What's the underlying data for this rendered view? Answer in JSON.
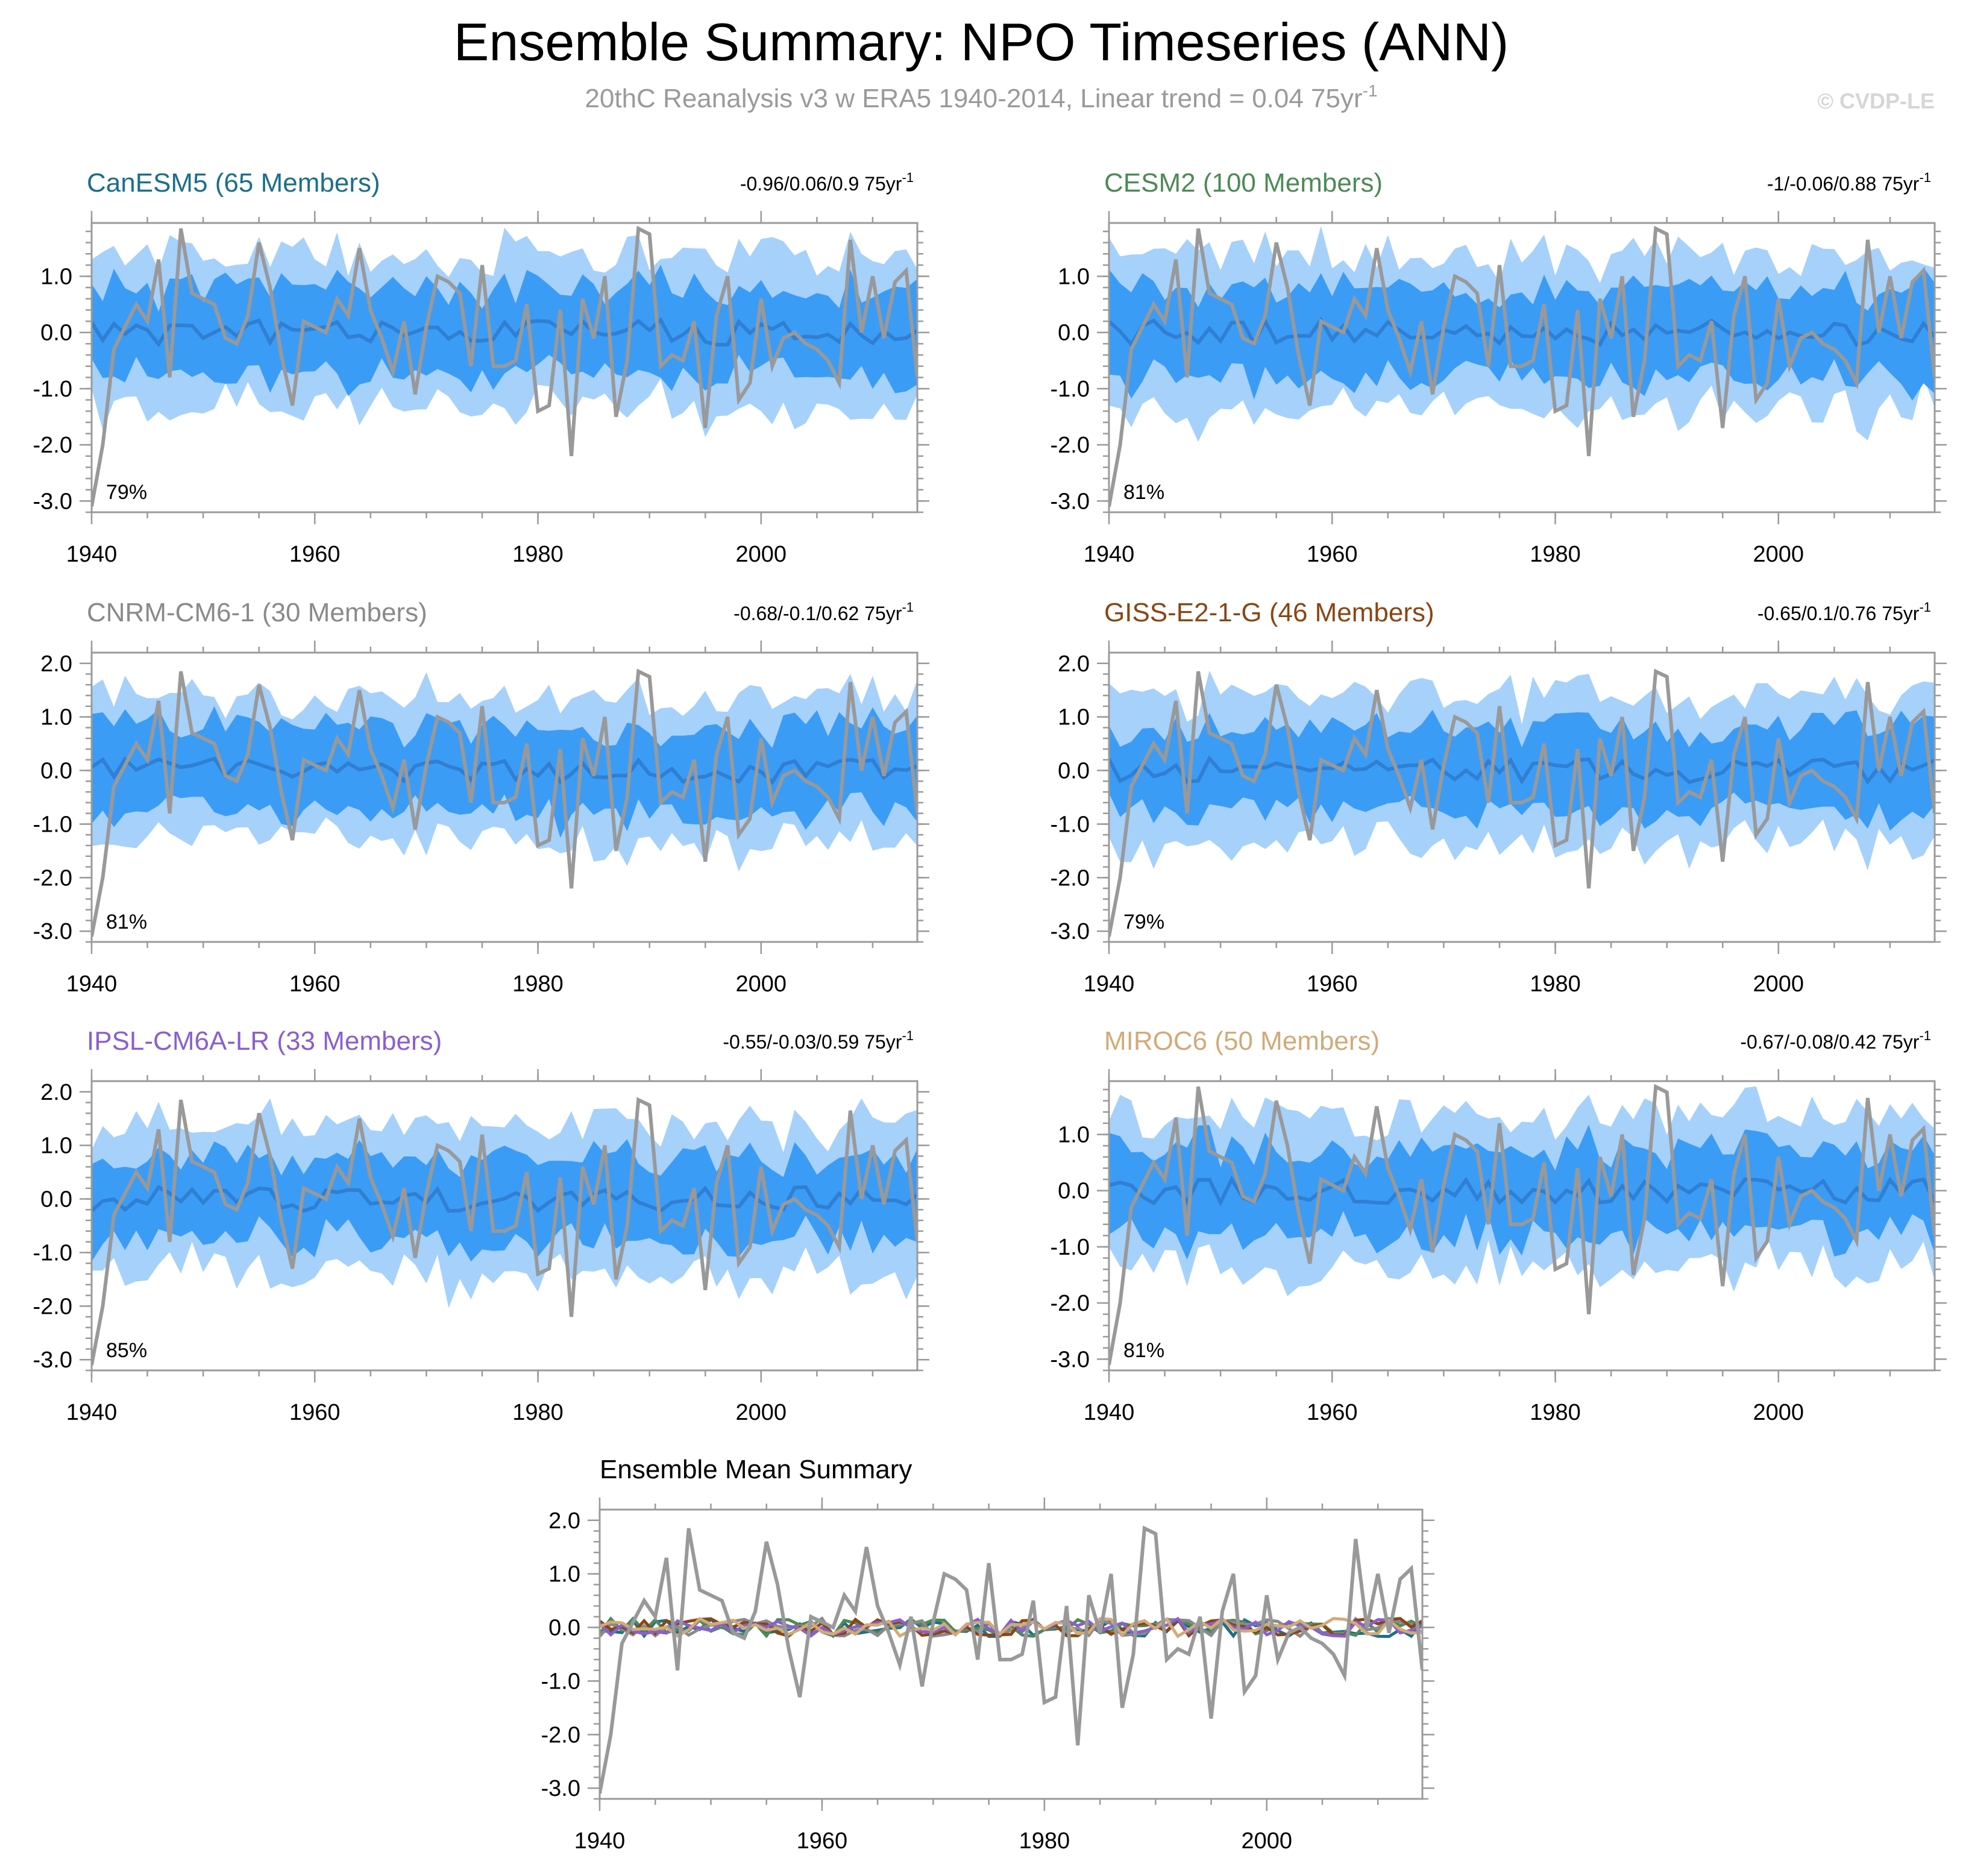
{
  "header": {
    "title": "Ensemble Summary: NPO Timeseries (ANN)",
    "subtitle": "20thC Reanalysis v3 w ERA5 1940-2014, Linear trend = 0.04 75yr",
    "subtitle_sup": "-1",
    "watermark": "© CVDP-LE"
  },
  "colors": {
    "outer_band": "#a6d1fb",
    "inner_band": "#3b9cf5",
    "ensemble_mean": "#2f7fd3",
    "observations": "#999999"
  },
  "chart_data": [
    {
      "type": "area",
      "title": "CanESM5 (65 Members)",
      "title_color": "#1b6f8a",
      "trend_label": "-0.96/0.06/0.9 75yr",
      "trend_sup": "-1",
      "percent": "79%",
      "x_ticks": [
        "1940",
        "1960",
        "1980",
        "2000"
      ],
      "y_ticks": [
        "1.0",
        "0.0",
        "-1.0",
        "-2.0",
        "-3.0"
      ],
      "xlim": [
        1940,
        2014
      ],
      "ylim": [
        -3.2,
        1.95
      ],
      "seed": 11
    },
    {
      "type": "area",
      "title": "CESM2 (100 Members)",
      "title_color": "#4d8a57",
      "trend_label": "-1/-0.06/0.88 75yr",
      "trend_sup": "-1",
      "percent": "81%",
      "x_ticks": [
        "1940",
        "1960",
        "1980",
        "2000"
      ],
      "y_ticks": [
        "1.0",
        "0.0",
        "-1.0",
        "-2.0",
        "-3.0"
      ],
      "xlim": [
        1940,
        2014
      ],
      "ylim": [
        -3.2,
        1.95
      ],
      "seed": 23
    },
    {
      "type": "area",
      "title": "CNRM-CM6-1 (30 Members)",
      "title_color": "#8a8a8a",
      "trend_label": "-0.68/-0.1/0.62 75yr",
      "trend_sup": "-1",
      "percent": "81%",
      "x_ticks": [
        "1940",
        "1960",
        "1980",
        "2000"
      ],
      "y_ticks": [
        "2.0",
        "1.0",
        "0.0",
        "-1.0",
        "-2.0",
        "-3.0"
      ],
      "xlim": [
        1940,
        2014
      ],
      "ylim": [
        -3.2,
        2.2
      ],
      "seed": 37
    },
    {
      "type": "area",
      "title": "GISS-E2-1-G (46 Members)",
      "title_color": "#8b4513",
      "trend_label": "-0.65/0.1/0.76 75yr",
      "trend_sup": "-1",
      "percent": "79%",
      "x_ticks": [
        "1940",
        "1960",
        "1980",
        "2000"
      ],
      "y_ticks": [
        "2.0",
        "1.0",
        "0.0",
        "-1.0",
        "-2.0",
        "-3.0"
      ],
      "xlim": [
        1940,
        2014
      ],
      "ylim": [
        -3.2,
        2.2
      ],
      "seed": 41
    },
    {
      "type": "area",
      "title": "IPSL-CM6A-LR (33 Members)",
      "title_color": "#8a5fd0",
      "trend_label": "-0.55/-0.03/0.59 75yr",
      "trend_sup": "-1",
      "percent": "85%",
      "x_ticks": [
        "1940",
        "1960",
        "1980",
        "2000"
      ],
      "y_ticks": [
        "2.0",
        "1.0",
        "0.0",
        "-1.0",
        "-2.0",
        "-3.0"
      ],
      "xlim": [
        1940,
        2014
      ],
      "ylim": [
        -3.2,
        2.2
      ],
      "seed": 53
    },
    {
      "type": "area",
      "title": "MIROC6 (50 Members)",
      "title_color": "#d2aa78",
      "trend_label": "-0.67/-0.08/0.42 75yr",
      "trend_sup": "-1",
      "percent": "81%",
      "x_ticks": [
        "1940",
        "1960",
        "1980",
        "2000"
      ],
      "y_ticks": [
        "1.0",
        "0.0",
        "-1.0",
        "-2.0",
        "-3.0"
      ],
      "xlim": [
        1940,
        2014
      ],
      "ylim": [
        -3.2,
        1.95
      ],
      "seed": 67
    },
    {
      "type": "line",
      "title": "Ensemble Mean Summary",
      "title_color": "#000000",
      "x_ticks": [
        "1940",
        "1960",
        "1980",
        "2000"
      ],
      "y_ticks": [
        "2.0",
        "1.0",
        "0.0",
        "-1.0",
        "-2.0",
        "-3.0"
      ],
      "xlim": [
        1940,
        2014
      ],
      "ylim": [
        -3.2,
        2.2
      ],
      "series_colors": [
        "#1b6f8a",
        "#4d8a57",
        "#8a8a8a",
        "#8b4513",
        "#8a5fd0",
        "#d2aa78"
      ]
    }
  ],
  "observed": {
    "name": "20thC Reanalysis v3 w ERA5",
    "years": [
      1940,
      1941,
      1942,
      1943,
      1944,
      1945,
      1946,
      1947,
      1948,
      1949,
      1950,
      1951,
      1952,
      1953,
      1954,
      1955,
      1956,
      1957,
      1958,
      1959,
      1960,
      1961,
      1962,
      1963,
      1964,
      1965,
      1966,
      1967,
      1968,
      1969,
      1970,
      1971,
      1972,
      1973,
      1974,
      1975,
      1976,
      1977,
      1978,
      1979,
      1980,
      1981,
      1982,
      1983,
      1984,
      1985,
      1986,
      1987,
      1988,
      1989,
      1990,
      1991,
      1992,
      1993,
      1994,
      1995,
      1996,
      1997,
      1998,
      1999,
      2000,
      2001,
      2002,
      2003,
      2004,
      2005,
      2006,
      2007,
      2008,
      2009,
      2010,
      2011,
      2012,
      2013,
      2014
    ],
    "values": [
      -3.1,
      -2.0,
      -0.3,
      0.1,
      0.5,
      0.2,
      1.3,
      -0.8,
      1.85,
      0.7,
      0.6,
      0.5,
      -0.1,
      -0.2,
      0.3,
      1.6,
      0.8,
      -0.4,
      -1.3,
      0.2,
      0.1,
      0.0,
      0.6,
      0.3,
      1.5,
      0.4,
      -0.1,
      -0.7,
      0.2,
      -1.1,
      0.1,
      1.0,
      0.9,
      0.7,
      -0.6,
      1.2,
      -0.6,
      -0.6,
      -0.5,
      0.5,
      -1.4,
      -1.3,
      0.4,
      -2.2,
      0.6,
      -0.1,
      1.0,
      -1.5,
      -0.5,
      1.85,
      1.75,
      -0.6,
      -0.4,
      -0.5,
      0.2,
      -1.7,
      0.3,
      1.0,
      -1.2,
      -0.9,
      0.6,
      -0.6,
      -0.1,
      0.0,
      -0.2,
      -0.3,
      -0.5,
      -0.9,
      1.65,
      0.0,
      1.0,
      -0.1,
      0.9,
      1.1,
      -0.8
    ]
  }
}
